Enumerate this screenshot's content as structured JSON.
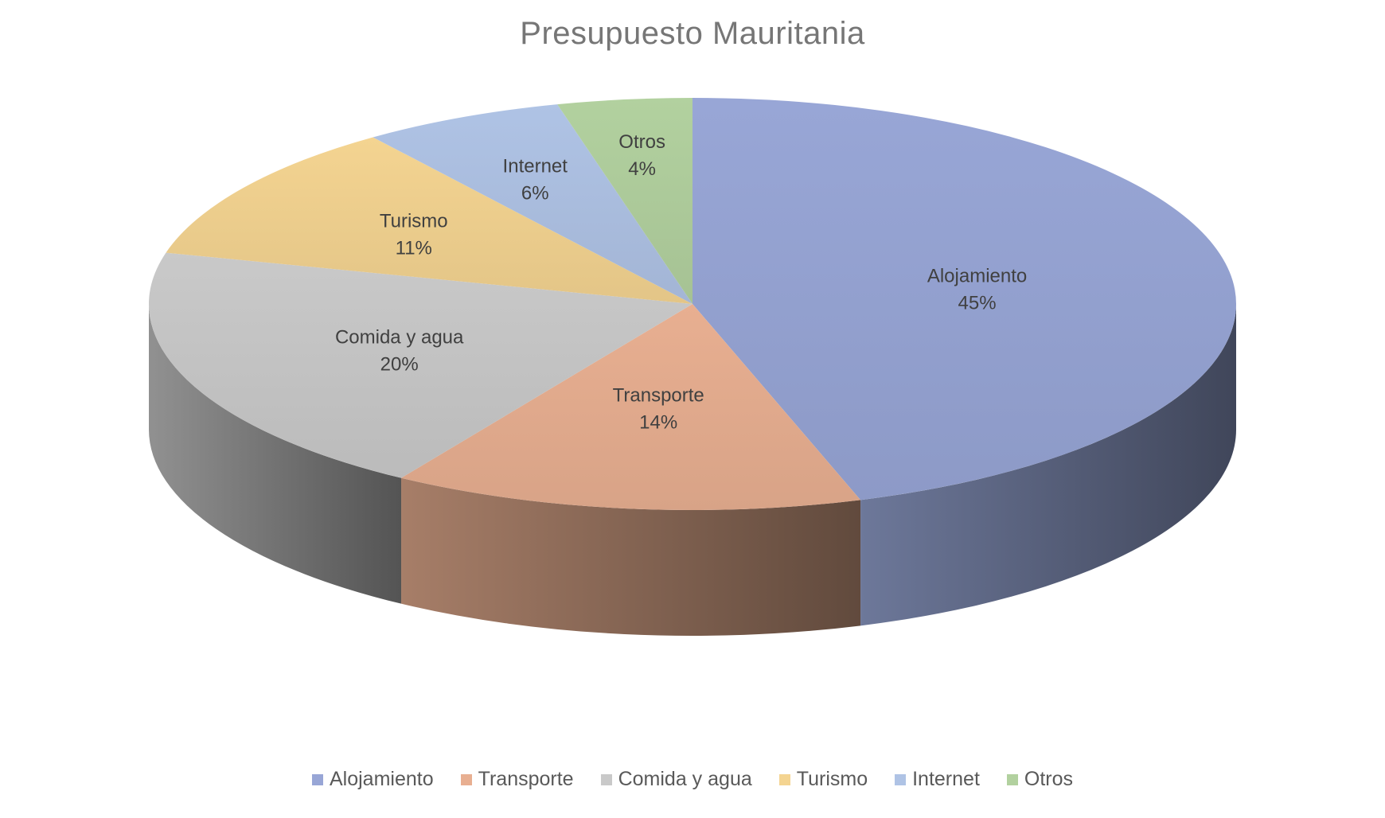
{
  "chart_data": {
    "type": "pie",
    "title": "Presupuesto Mauritania",
    "slices": [
      {
        "label": "Alojamiento",
        "value": 45,
        "percent_label": "45%",
        "color": "#98A6D6"
      },
      {
        "label": "Transporte",
        "value": 14,
        "percent_label": "14%",
        "color": "#E8AF91"
      },
      {
        "label": "Comida y agua",
        "value": 20,
        "percent_label": "20%",
        "color": "#C9C9C9"
      },
      {
        "label": "Turismo",
        "value": 11,
        "percent_label": "11%",
        "color": "#F4D491"
      },
      {
        "label": "Internet",
        "value": 6,
        "percent_label": "6%",
        "color": "#AFC3E5"
      },
      {
        "label": "Otros",
        "value": 4,
        "percent_label": "4%",
        "color": "#B2D19F"
      }
    ],
    "legend_position": "bottom",
    "style": "3d"
  }
}
